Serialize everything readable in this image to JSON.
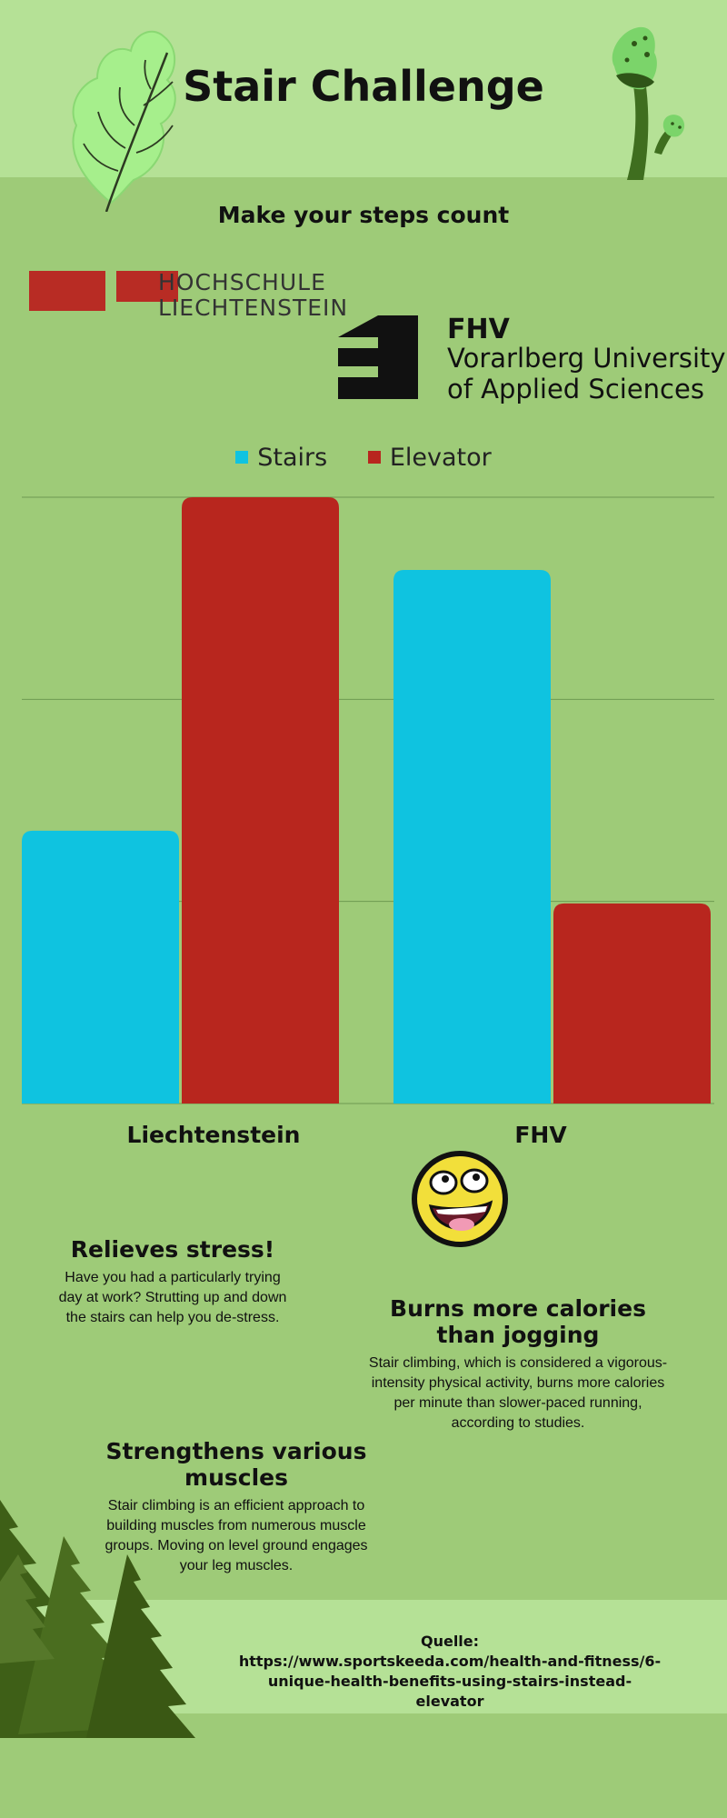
{
  "header": {
    "title": "Stair Challenge",
    "subtitle": "Make your steps count"
  },
  "logos": {
    "hl_line1": "HOCHSCHULE",
    "hl_line2": "LIECHTENSTEIN",
    "fhv_name": "FHV",
    "fhv_line1": "Vorarlberg University",
    "fhv_line2": "of Applied Sciences"
  },
  "colors": {
    "stairs": "#0fc3e0",
    "elevator": "#b8261e",
    "background": "#9ecb78",
    "band": "#b5e196"
  },
  "chart_data": {
    "type": "bar",
    "categories": [
      "Liechtenstein",
      "FHV"
    ],
    "series": [
      {
        "name": "Stairs",
        "values": [
          45,
          88
        ]
      },
      {
        "name": "Elevator",
        "values": [
          100,
          33
        ]
      }
    ],
    "ylim": [
      0,
      100
    ],
    "grid": true,
    "legend": "top-center"
  },
  "features": {
    "stress_title": "Relieves stress!",
    "stress_text": "Have you had a particularly trying day at work? Strutting up and down the stairs can help you de-stress.",
    "calories_title": "Burns more calories than jogging",
    "calories_text": "Stair climbing, which is considered a vigorous-intensity physical activity, burns more calories per minute than slower-paced running, according to studies.",
    "muscles_title": "Strengthens various muscles",
    "muscles_text": "Stair climbing is an efficient approach to building muscles from numerous muscle groups. Moving on level ground engages your leg muscles."
  },
  "source": {
    "label": "Quelle:",
    "url": "https://www.sportskeeda.com/health-and-fitness/6-unique-health-benefits-using-stairs-instead-elevator"
  },
  "icons": [
    "leaf-icon",
    "mushroom-icon",
    "smiley-face-icon",
    "pine-trees-icon"
  ]
}
